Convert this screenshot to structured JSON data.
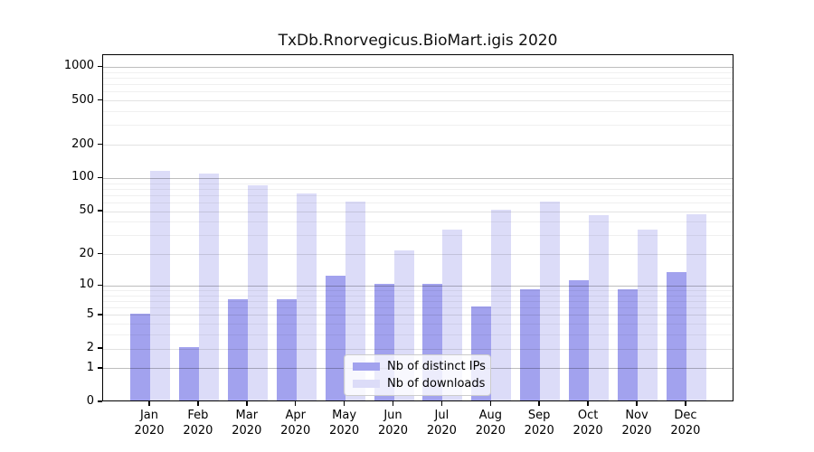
{
  "chart_data": {
    "type": "bar",
    "title": "TxDb.Rnorvegicus.BioMart.igis 2020",
    "categories": [
      "Jan",
      "Feb",
      "Mar",
      "Apr",
      "May",
      "Jun",
      "Jul",
      "Aug",
      "Sep",
      "Oct",
      "Nov",
      "Dec"
    ],
    "category_year": "2020",
    "series": [
      {
        "name": "Nb of distinct IPs",
        "color": "#a2a2ee",
        "values": [
          5,
          2,
          7,
          7,
          12,
          10,
          10,
          6,
          9,
          11,
          9,
          13
        ]
      },
      {
        "name": "Nb of downloads",
        "color": "#dcdcf8",
        "values": [
          112,
          106,
          83,
          71,
          60,
          21,
          33,
          50,
          59,
          45,
          33,
          46
        ]
      }
    ],
    "y_axis": {
      "ticks": [
        0,
        1,
        2,
        5,
        10,
        20,
        50,
        100,
        200,
        500,
        1000
      ],
      "scale": "log10(1+v)",
      "ylim": [
        0,
        1290
      ]
    },
    "grid": true,
    "legend": {
      "position": "lower center"
    }
  }
}
